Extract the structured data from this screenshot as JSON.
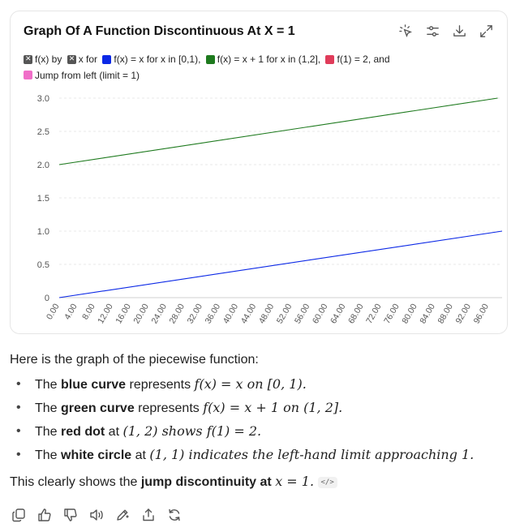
{
  "card": {
    "title": "Graph Of A Function Discontinuous At X = 1"
  },
  "toolbar": {
    "icons": [
      "select-icon",
      "settings-sliders-icon",
      "download-icon",
      "expand-icon"
    ]
  },
  "legend": {
    "items": [
      {
        "label": "f(x) by",
        "swatch": "x",
        "color": "#555555"
      },
      {
        "label": "x for",
        "swatch": "x",
        "color": "#555555"
      },
      {
        "label": "f(x) = x for x in [0,1),",
        "swatch": "solid",
        "color": "#0b28e6"
      },
      {
        "label": "f(x) = x + 1 for x in (1,2],",
        "swatch": "solid",
        "color": "#1e7a1e"
      },
      {
        "label": "f(1) = 2, and",
        "swatch": "solid",
        "color": "#e03c5a"
      },
      {
        "label": "Jump from left (limit = 1)",
        "swatch": "solid",
        "color": "#f06ec8"
      }
    ]
  },
  "chart_data": {
    "type": "line",
    "x_ticks": [
      "0.00",
      "4.00",
      "8.00",
      "12.00",
      "16.00",
      "20.00",
      "24.00",
      "28.00",
      "32.00",
      "36.00",
      "40.00",
      "44.00",
      "48.00",
      "52.00",
      "56.00",
      "60.00",
      "64.00",
      "68.00",
      "72.00",
      "76.00",
      "80.00",
      "84.00",
      "88.00",
      "92.00",
      "96.00"
    ],
    "y_ticks": [
      "0",
      "0.5",
      "1.0",
      "1.5",
      "2.0",
      "2.5",
      "3.0"
    ],
    "xlim": [
      0,
      99
    ],
    "ylim": [
      0,
      3
    ],
    "grid": true,
    "series": [
      {
        "name": "f(x) = x for x in [0,1),",
        "color": "#0b28e6",
        "x": [
          0,
          99
        ],
        "y": [
          0,
          1
        ]
      },
      {
        "name": "f(x) = x + 1 for x in (1,2],",
        "color": "#1e7a1e",
        "x": [
          0,
          98
        ],
        "y": [
          2,
          3
        ]
      }
    ]
  },
  "text": {
    "intro": "Here is the graph of the piecewise function:",
    "bullets": [
      {
        "pre": "The ",
        "bold": "blue curve",
        "post": " represents ",
        "math": "f(x) = x on [0, 1)."
      },
      {
        "pre": "The ",
        "bold": "green curve",
        "post": " represents ",
        "math": "f(x) = x + 1 on (1, 2]."
      },
      {
        "pre": "The ",
        "bold": "red dot",
        "post": " at ",
        "math": "(1, 2) shows f(1) = 2."
      },
      {
        "pre": "The ",
        "bold": "white circle",
        "post": " at ",
        "math": "(1, 1) indicates the left-hand limit approaching 1."
      }
    ],
    "outro_pre": "This clearly shows the ",
    "outro_bold": "jump discontinuity at ",
    "outro_math": "x = 1.",
    "code_chip": "</>"
  },
  "actions": {
    "icons": [
      "copy-icon",
      "thumbs-up-icon",
      "thumbs-down-icon",
      "read-aloud-icon",
      "edit-icon",
      "share-icon",
      "regenerate-icon"
    ]
  }
}
